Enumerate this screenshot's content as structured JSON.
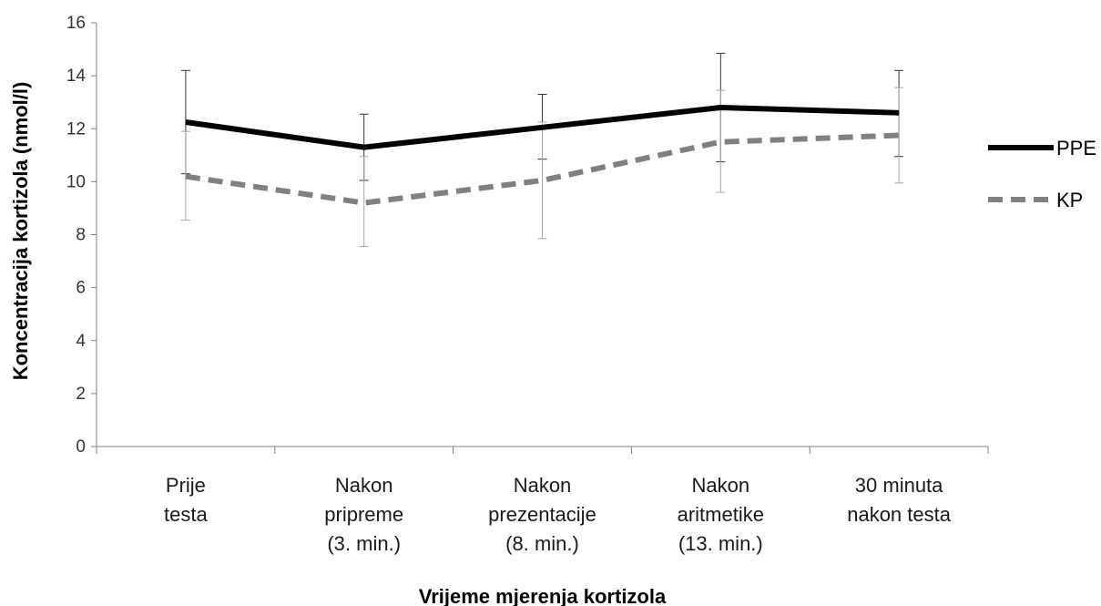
{
  "chart_data": {
    "type": "line",
    "xlabel": "Vrijeme mjerenja kortizola",
    "ylabel": "Koncentracija kortizola (nmol/l)",
    "ylim": [
      0,
      16
    ],
    "yticks": [
      0,
      2,
      4,
      6,
      8,
      10,
      12,
      14,
      16
    ],
    "grid": false,
    "legend_position": "right",
    "categories": [
      [
        "Prije",
        "testa"
      ],
      [
        "Nakon",
        "pripreme",
        "(3. min.)"
      ],
      [
        "Nakon",
        "prezentacije",
        "(8. min.)"
      ],
      [
        "Nakon",
        "aritmetike",
        "(13. min.)"
      ],
      [
        "30 minuta",
        "nakon testa"
      ]
    ],
    "series": [
      {
        "name": "PPE",
        "color": "#000000",
        "style": "solid",
        "values": [
          12.25,
          11.3,
          12.05,
          12.8,
          12.6
        ],
        "error_low": [
          10.3,
          10.05,
          10.85,
          10.75,
          10.95
        ],
        "error_high": [
          14.2,
          12.55,
          13.3,
          14.85,
          14.2
        ]
      },
      {
        "name": "KP",
        "color": "#808080",
        "style": "dashed",
        "values": [
          10.2,
          9.2,
          10.05,
          11.5,
          11.75
        ],
        "error_low": [
          8.55,
          7.55,
          7.85,
          9.6,
          9.95
        ],
        "error_high": [
          11.9,
          10.95,
          12.25,
          13.45,
          13.55
        ]
      }
    ]
  }
}
